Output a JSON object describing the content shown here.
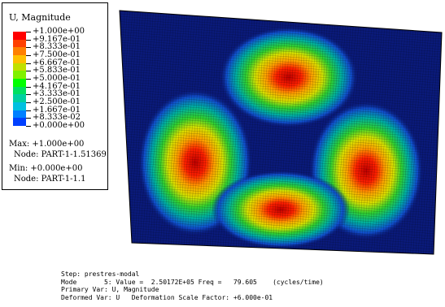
{
  "legend": {
    "title": "U, Magnitude",
    "levels": [
      "+1.000e+00",
      "+9.167e-01",
      "+8.333e-01",
      "+7.500e-01",
      "+6.667e-01",
      "+5.833e-01",
      "+5.000e-01",
      "+4.167e-01",
      "+3.333e-01",
      "+2.500e-01",
      "+1.667e-01",
      "+8.333e-02",
      "+0.000e+00"
    ],
    "colors": [
      "#ff0000",
      "#ff4000",
      "#ff8000",
      "#ffc000",
      "#c0e000",
      "#80f000",
      "#00ff00",
      "#00e060",
      "#00d0a0",
      "#00c0e0",
      "#0080ff",
      "#0040ff",
      "#0000ff"
    ],
    "max_label": "Max: +1.000e+00",
    "max_node": "Node: PART-1-1.51369",
    "min_label": "Min: +0.000e+00",
    "min_node": "Node: PART-1-1.1"
  },
  "info": {
    "step": "Step: prestres-modal",
    "mode": "Mode       5: Value =  2.50172E+05 Freq =   79.605    (cycles/time)",
    "primary_var": "Primary Var: U, Magnitude",
    "deformed_var": "Deformed Var: U   Deformation Scale Factor: +6.000e-01"
  },
  "colors": {
    "plate_base": "#0a1a7a",
    "mesh_line": "#000000",
    "background": "#ffffff"
  }
}
